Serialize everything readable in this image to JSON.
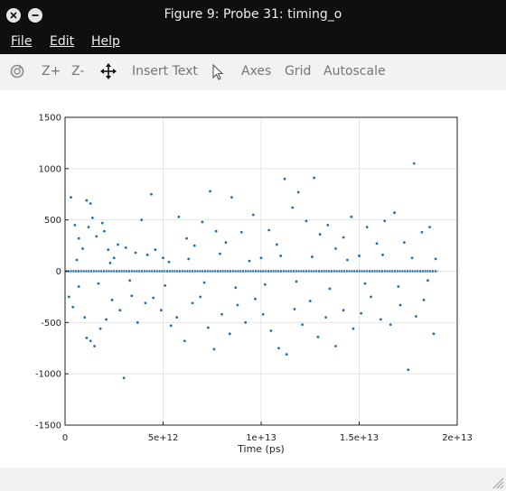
{
  "window": {
    "title": "Figure 9: Probe 31: timing_o"
  },
  "menu": {
    "file": "File",
    "edit": "Edit",
    "help": "Help"
  },
  "toolbar": {
    "rotate_icon": "rotate-icon",
    "zoom_in": "Z+",
    "zoom_out": "Z-",
    "pan_icon": "pan-icon",
    "insert_text": "Insert Text",
    "select_icon": "pointer-icon",
    "axes": "Axes",
    "grid": "Grid",
    "autoscale": "Autoscale"
  },
  "colors": {
    "marker": "#1f6fb4",
    "titlebar": "#0f0f0f"
  },
  "chart_data": {
    "type": "scatter",
    "title": "",
    "xlabel": "Time (ps)",
    "ylabel": "",
    "xlim": [
      0,
      20000000000000
    ],
    "ylim": [
      -1500,
      1500
    ],
    "x_ticks": [
      "0",
      "5e+12",
      "1e+13",
      "1.5e+13",
      "2e+13"
    ],
    "y_ticks": [
      "1500",
      "1000",
      "500",
      "0",
      "-500",
      "-1000",
      "-1500"
    ],
    "grid": true,
    "dense_band": {
      "y": 0,
      "x_start": 0,
      "x_end": 19000000000000
    },
    "points": [
      [
        300000000000,
        720
      ],
      [
        500000000000,
        450
      ],
      [
        700000000000,
        320
      ],
      [
        900000000000,
        220
      ],
      [
        1100000000000,
        690
      ],
      [
        1200000000000,
        430
      ],
      [
        1300000000000,
        660
      ],
      [
        1400000000000,
        520
      ],
      [
        1600000000000,
        340
      ],
      [
        1900000000000,
        470
      ],
      [
        2000000000000,
        390
      ],
      [
        2200000000000,
        210
      ],
      [
        2500000000000,
        130
      ],
      [
        2700000000000,
        260
      ],
      [
        3100000000000,
        230
      ],
      [
        3600000000000,
        180
      ],
      [
        3900000000000,
        500
      ],
      [
        4400000000000,
        750
      ],
      [
        4600000000000,
        210
      ],
      [
        5000000000000,
        130
      ],
      [
        5300000000000,
        90
      ],
      [
        5800000000000,
        530
      ],
      [
        6200000000000,
        320
      ],
      [
        6600000000000,
        250
      ],
      [
        7000000000000,
        480
      ],
      [
        7400000000000,
        780
      ],
      [
        7700000000000,
        390
      ],
      [
        8200000000000,
        280
      ],
      [
        8500000000000,
        720
      ],
      [
        9000000000000,
        380
      ],
      [
        9600000000000,
        550
      ],
      [
        10000000000000,
        130
      ],
      [
        10400000000000,
        400
      ],
      [
        10800000000000,
        260
      ],
      [
        11200000000000,
        900
      ],
      [
        11600000000000,
        620
      ],
      [
        11900000000000,
        770
      ],
      [
        12300000000000,
        490
      ],
      [
        12700000000000,
        910
      ],
      [
        13000000000000,
        360
      ],
      [
        13400000000000,
        450
      ],
      [
        13800000000000,
        220
      ],
      [
        14200000000000,
        330
      ],
      [
        14600000000000,
        530
      ],
      [
        15000000000000,
        150
      ],
      [
        15400000000000,
        430
      ],
      [
        15900000000000,
        270
      ],
      [
        16300000000000,
        490
      ],
      [
        16800000000000,
        570
      ],
      [
        17300000000000,
        280
      ],
      [
        17800000000000,
        1050
      ],
      [
        18200000000000,
        380
      ],
      [
        18600000000000,
        430
      ],
      [
        18900000000000,
        120
      ],
      [
        200000000000,
        -250
      ],
      [
        400000000000,
        -350
      ],
      [
        700000000000,
        -150
      ],
      [
        1000000000000,
        -450
      ],
      [
        1100000000000,
        -650
      ],
      [
        1300000000000,
        -680
      ],
      [
        1500000000000,
        -730
      ],
      [
        1800000000000,
        -560
      ],
      [
        2100000000000,
        -470
      ],
      [
        2400000000000,
        -280
      ],
      [
        2800000000000,
        -380
      ],
      [
        3000000000000,
        -1040
      ],
      [
        3400000000000,
        -240
      ],
      [
        3700000000000,
        -500
      ],
      [
        4100000000000,
        -310
      ],
      [
        4500000000000,
        -260
      ],
      [
        4900000000000,
        -380
      ],
      [
        5400000000000,
        -530
      ],
      [
        5700000000000,
        -450
      ],
      [
        6100000000000,
        -680
      ],
      [
        6500000000000,
        -310
      ],
      [
        6900000000000,
        -250
      ],
      [
        7300000000000,
        -550
      ],
      [
        7600000000000,
        -760
      ],
      [
        8000000000000,
        -420
      ],
      [
        8400000000000,
        -610
      ],
      [
        8800000000000,
        -330
      ],
      [
        9200000000000,
        -500
      ],
      [
        9700000000000,
        -270
      ],
      [
        10100000000000,
        -420
      ],
      [
        10500000000000,
        -580
      ],
      [
        10900000000000,
        -750
      ],
      [
        11300000000000,
        -810
      ],
      [
        11700000000000,
        -370
      ],
      [
        12100000000000,
        -520
      ],
      [
        12500000000000,
        -290
      ],
      [
        12900000000000,
        -640
      ],
      [
        13300000000000,
        -450
      ],
      [
        13800000000000,
        -730
      ],
      [
        14200000000000,
        -380
      ],
      [
        14700000000000,
        -560
      ],
      [
        15100000000000,
        -410
      ],
      [
        15600000000000,
        -250
      ],
      [
        16100000000000,
        -470
      ],
      [
        16600000000000,
        -520
      ],
      [
        17100000000000,
        -330
      ],
      [
        17500000000000,
        -960
      ],
      [
        17900000000000,
        -440
      ],
      [
        18300000000000,
        -280
      ],
      [
        18800000000000,
        -610
      ],
      [
        600000000000,
        110
      ],
      [
        1700000000000,
        -120
      ],
      [
        2300000000000,
        80
      ],
      [
        3300000000000,
        -90
      ],
      [
        4200000000000,
        160
      ],
      [
        5100000000000,
        -140
      ],
      [
        6300000000000,
        120
      ],
      [
        7100000000000,
        -110
      ],
      [
        7900000000000,
        170
      ],
      [
        8700000000000,
        -160
      ],
      [
        9400000000000,
        100
      ],
      [
        10200000000000,
        -130
      ],
      [
        11000000000000,
        150
      ],
      [
        11800000000000,
        -100
      ],
      [
        12600000000000,
        140
      ],
      [
        13500000000000,
        -170
      ],
      [
        14400000000000,
        110
      ],
      [
        15300000000000,
        -120
      ],
      [
        16200000000000,
        160
      ],
      [
        17000000000000,
        -150
      ],
      [
        17700000000000,
        130
      ],
      [
        18500000000000,
        -90
      ]
    ]
  }
}
